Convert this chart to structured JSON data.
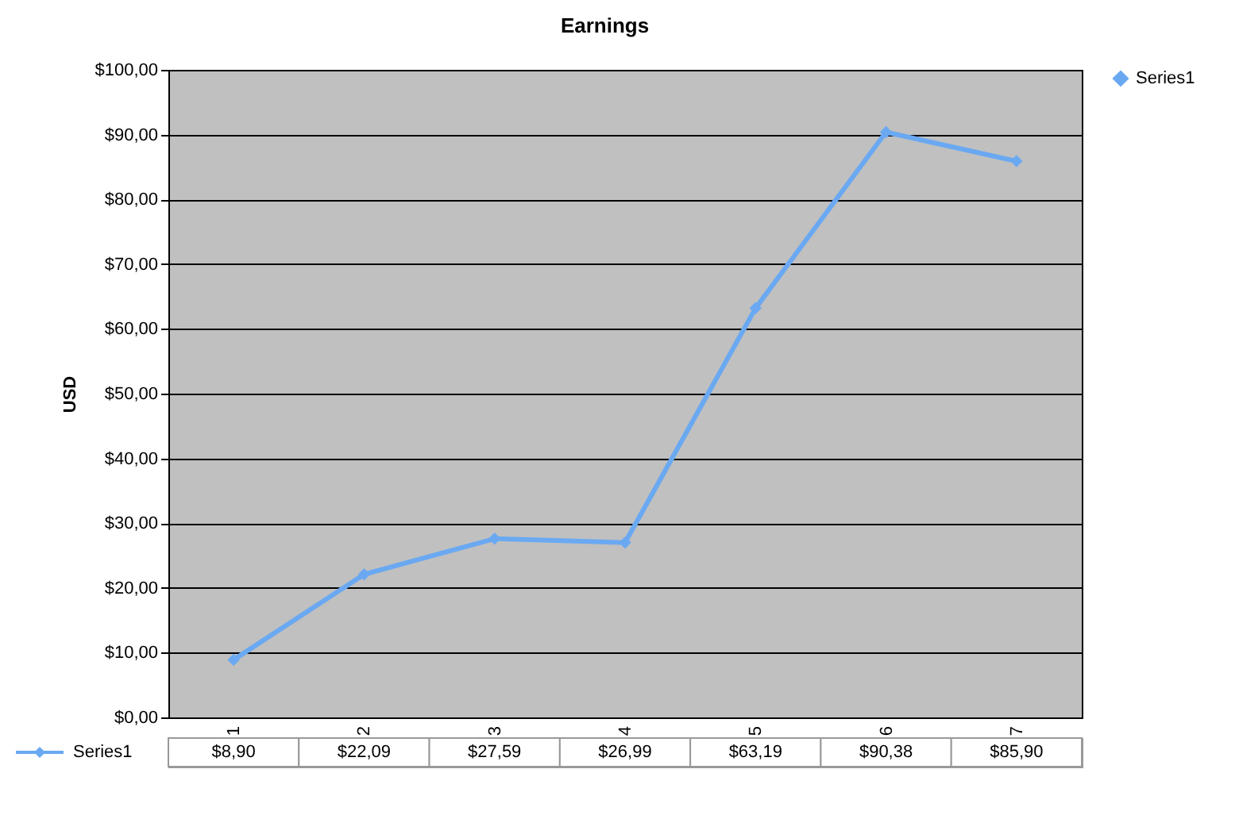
{
  "chart_data": {
    "type": "line",
    "title": "Earnings",
    "ylabel": "USD",
    "categories": [
      "1",
      "2",
      "3",
      "4",
      "5",
      "6",
      "7"
    ],
    "series": [
      {
        "name": "Series1",
        "color": "#6aa9f2",
        "values": [
          8.9,
          22.09,
          27.59,
          26.99,
          63.19,
          90.38,
          85.9
        ],
        "value_labels": [
          "$8,90",
          "$22,09",
          "$27,59",
          "$26,99",
          "$63,19",
          "$90,38",
          "$85,90"
        ]
      }
    ],
    "ylim": [
      0,
      100
    ],
    "yticks": [
      {
        "value": 0,
        "label": "$0,00"
      },
      {
        "value": 10,
        "label": "$10,00"
      },
      {
        "value": 20,
        "label": "$20,00"
      },
      {
        "value": 30,
        "label": "$30,00"
      },
      {
        "value": 40,
        "label": "$40,00"
      },
      {
        "value": 50,
        "label": "$50,00"
      },
      {
        "value": 60,
        "label": "$60,00"
      },
      {
        "value": 70,
        "label": "$70,00"
      },
      {
        "value": 80,
        "label": "$80,00"
      },
      {
        "value": 90,
        "label": "$90,00"
      },
      {
        "value": 100,
        "label": "$100,00"
      }
    ],
    "grid": "y",
    "legend": "right",
    "marker": "diamond",
    "line_style": "solid"
  }
}
